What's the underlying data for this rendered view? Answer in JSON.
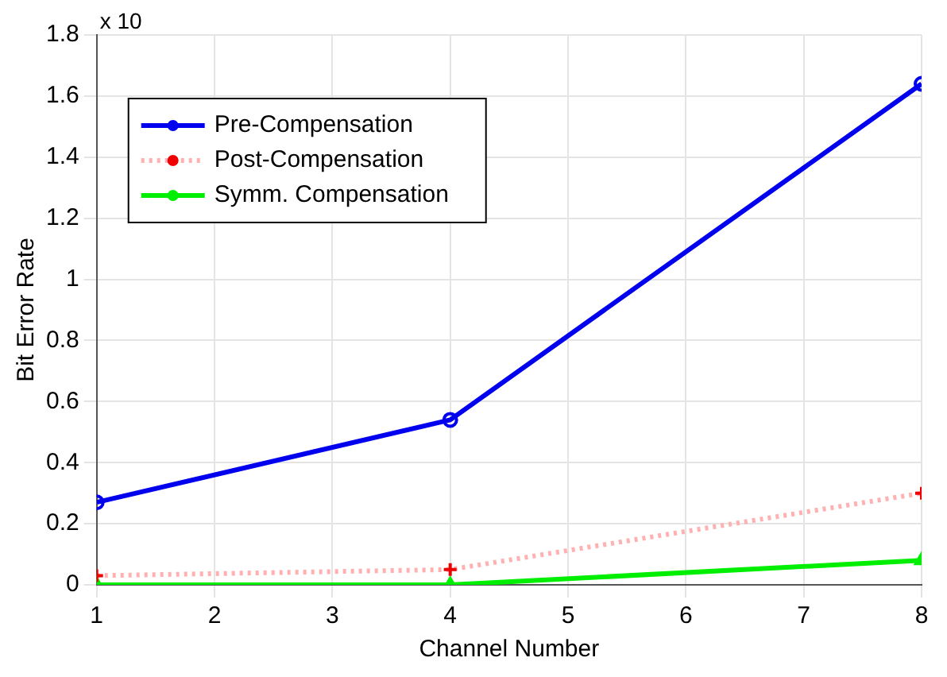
{
  "chart_data": {
    "type": "line",
    "xlabel": "Channel Number",
    "ylabel": "Bit Error Rate",
    "annotations": [
      "x 10"
    ],
    "x": [
      1,
      4,
      8
    ],
    "xlim": [
      1,
      8
    ],
    "xticks": [
      1,
      2,
      3,
      4,
      5,
      6,
      7,
      8
    ],
    "ylim": [
      0,
      1.8
    ],
    "yticks": [
      0,
      0.2,
      0.4,
      0.6,
      0.8,
      1,
      1.2,
      1.4,
      1.6,
      1.8
    ],
    "grid": true,
    "legend": "top left",
    "series": [
      {
        "name": "Pre-Compensation",
        "color": "#0000ee",
        "values": [
          0.27,
          0.54,
          1.64
        ],
        "marker": "circle",
        "line_style": "solid"
      },
      {
        "name": "Post-Compensation",
        "color": "#ffb0b0",
        "values": [
          0.03,
          0.05,
          0.3
        ],
        "marker": "cross",
        "line_style": "dotted"
      },
      {
        "name": "Symm. Compensation",
        "color": "#00ee00",
        "values": [
          0,
          0,
          0.08
        ],
        "marker": "triangle",
        "line_style": "solid"
      }
    ]
  }
}
